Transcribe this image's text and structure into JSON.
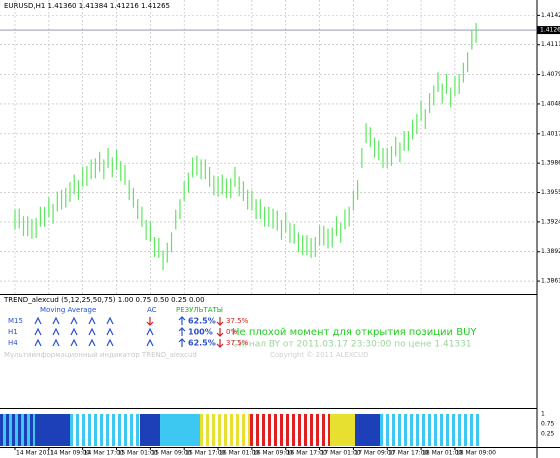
{
  "chart_data": {
    "type": "hilo",
    "title": "EURUSD,H1  1.41360 1.41384 1.41216 1.41265",
    "categories": [
      "14 Mar 2011",
      null,
      null,
      null,
      null,
      null,
      null,
      null,
      "14 Mar 09:00",
      null,
      null,
      null,
      null,
      null,
      null,
      null,
      "14 Mar 17:00",
      null,
      null,
      null,
      null,
      null,
      null,
      null,
      "15 Mar 01:00",
      null,
      null,
      null,
      null,
      null,
      null,
      null,
      "15 Mar 09:00",
      null,
      null,
      null,
      null,
      null,
      null,
      null,
      "15 Mar 17:00",
      null,
      null,
      null,
      null,
      null,
      null,
      null,
      "16 Mar 01:00",
      null,
      null,
      null,
      null,
      null,
      null,
      null,
      "16 Mar 09:00",
      null,
      null,
      null,
      null,
      null,
      null,
      null,
      "16 Mar 17:00",
      null,
      null,
      null,
      null,
      null,
      null,
      null,
      "17 Mar 01:00",
      null,
      null,
      null,
      null,
      null,
      null,
      null,
      "17 Mar 09:00",
      null,
      null,
      null,
      null,
      null,
      null,
      null,
      "17 Mar 17:00",
      null,
      null,
      null,
      null,
      null,
      null,
      null,
      "18 Mar 01:00",
      null,
      null,
      null,
      null,
      null,
      null,
      null,
      "18 Mar 09:00",
      null,
      null,
      null,
      null,
      null
    ],
    "high": [
      1.3937,
      1.3938,
      1.393,
      1.393,
      1.3927,
      1.3928,
      1.394,
      1.394,
      1.395,
      1.3943,
      1.3956,
      1.3958,
      1.396,
      1.3966,
      1.3974,
      1.3968,
      1.3982,
      1.3983,
      1.399,
      1.3991,
      1.3998,
      1.399,
      1.4002,
      1.3992,
      1.4,
      1.3988,
      1.3984,
      1.3968,
      1.396,
      1.3948,
      1.394,
      1.3926,
      1.3924,
      1.3908,
      1.3907,
      1.3894,
      1.3902,
      1.3913,
      1.3937,
      1.3948,
      1.3967,
      1.3976,
      1.3992,
      1.3994,
      1.399,
      1.399,
      1.3982,
      1.3973,
      1.3972,
      1.3974,
      1.397,
      1.397,
      1.3982,
      1.3972,
      1.3967,
      1.3958,
      1.3957,
      1.3948,
      1.3948,
      1.394,
      1.394,
      1.3938,
      1.3936,
      1.3926,
      1.3934,
      1.3923,
      1.3922,
      1.3913,
      1.391,
      1.391,
      1.3907,
      1.3908,
      1.392,
      1.392,
      1.3917,
      1.3918,
      1.393,
      1.3923,
      1.3937,
      1.394,
      1.3957,
      1.3968,
      1.4002,
      1.4028,
      1.4024,
      1.4013,
      1.401,
      1.4002,
      1.4002,
      1.4004,
      1.4014,
      1.4008,
      1.402,
      1.402,
      1.4032,
      1.4038,
      1.4052,
      1.4043,
      1.406,
      1.4068,
      1.4082,
      1.407,
      1.408,
      1.4066,
      1.4078,
      1.408,
      1.4092,
      1.4103,
      1.4127,
      1.4134
    ],
    "low": [
      1.3916,
      1.3917,
      1.3909,
      1.3909,
      1.3906,
      1.3907,
      1.3919,
      1.3919,
      1.3929,
      1.3922,
      1.3935,
      1.3937,
      1.3939,
      1.3945,
      1.3953,
      1.3947,
      1.3961,
      1.3962,
      1.3969,
      1.397,
      1.3977,
      1.3969,
      1.3981,
      1.3971,
      1.3979,
      1.3967,
      1.3963,
      1.3947,
      1.3939,
      1.3927,
      1.3919,
      1.3905,
      1.3903,
      1.3887,
      1.3886,
      1.3873,
      1.3881,
      1.3892,
      1.3916,
      1.3927,
      1.3946,
      1.3955,
      1.3971,
      1.3973,
      1.3969,
      1.3969,
      1.3961,
      1.3952,
      1.3951,
      1.3953,
      1.3949,
      1.3949,
      1.3961,
      1.3951,
      1.3946,
      1.3937,
      1.3936,
      1.3927,
      1.3927,
      1.3919,
      1.3919,
      1.3917,
      1.3915,
      1.3905,
      1.3913,
      1.3902,
      1.3901,
      1.3892,
      1.3889,
      1.3889,
      1.3886,
      1.3887,
      1.3899,
      1.3899,
      1.3896,
      1.3897,
      1.3909,
      1.3902,
      1.3916,
      1.3919,
      1.3936,
      1.3947,
      1.3981,
      1.4007,
      1.4003,
      1.3992,
      1.3989,
      1.3981,
      1.3981,
      1.3983,
      1.3993,
      1.3987,
      1.3999,
      1.3999,
      1.4011,
      1.4017,
      1.4031,
      1.4022,
      1.4039,
      1.4047,
      1.4061,
      1.4049,
      1.4059,
      1.4045,
      1.4057,
      1.4059,
      1.4071,
      1.4082,
      1.4106,
      1.4113
    ],
    "color": "#5ee65e",
    "ylim": [
      1.385,
      1.4154
    ],
    "yticks": [
      {
        "value": 1.4142,
        "label": "1.41420"
      },
      {
        "value": 1.4111,
        "label": "1.41110"
      },
      1.40795,
      1.40485,
      {
        "value": 1.4017,
        "label": "1.40170"
      },
      {
        "value": 1.3986,
        "label": "1.39860"
      },
      {
        "value": 1.3955,
        "label": "1.39550"
      },
      {
        "value": 1.3924,
        "label": "1.39240"
      },
      1.38925,
      1.38615
    ],
    "current_price": 1.41265,
    "grid": true
  },
  "indicator": {
    "header": "TREND_alexcud (5,12,25,50,75) 1.00 0.75 0.50 0.25 0.00",
    "ma_label": "Moving Average",
    "ac_label": "AC",
    "results_label": "РЕЗУЛЬТАТЫ",
    "rows": [
      {
        "tf": "M15",
        "up": "62.5%",
        "down": "37.5%"
      },
      {
        "tf": "H1",
        "up": "100%",
        "down": "0%"
      },
      {
        "tf": "H4",
        "up": "62.5%",
        "down": "37.5%"
      }
    ],
    "message": "Не плохой момент для открытия позиции BUY",
    "signal": "Сигнал BY от 2011.03.17 23:30:00 по цене 1.41331",
    "footer": "Мультиинформационный индикатор TREND_alexcud",
    "copyright": "Copyright © 2011 ALEXCUD",
    "scale": [
      "1",
      "0.75",
      "0.25"
    ]
  }
}
